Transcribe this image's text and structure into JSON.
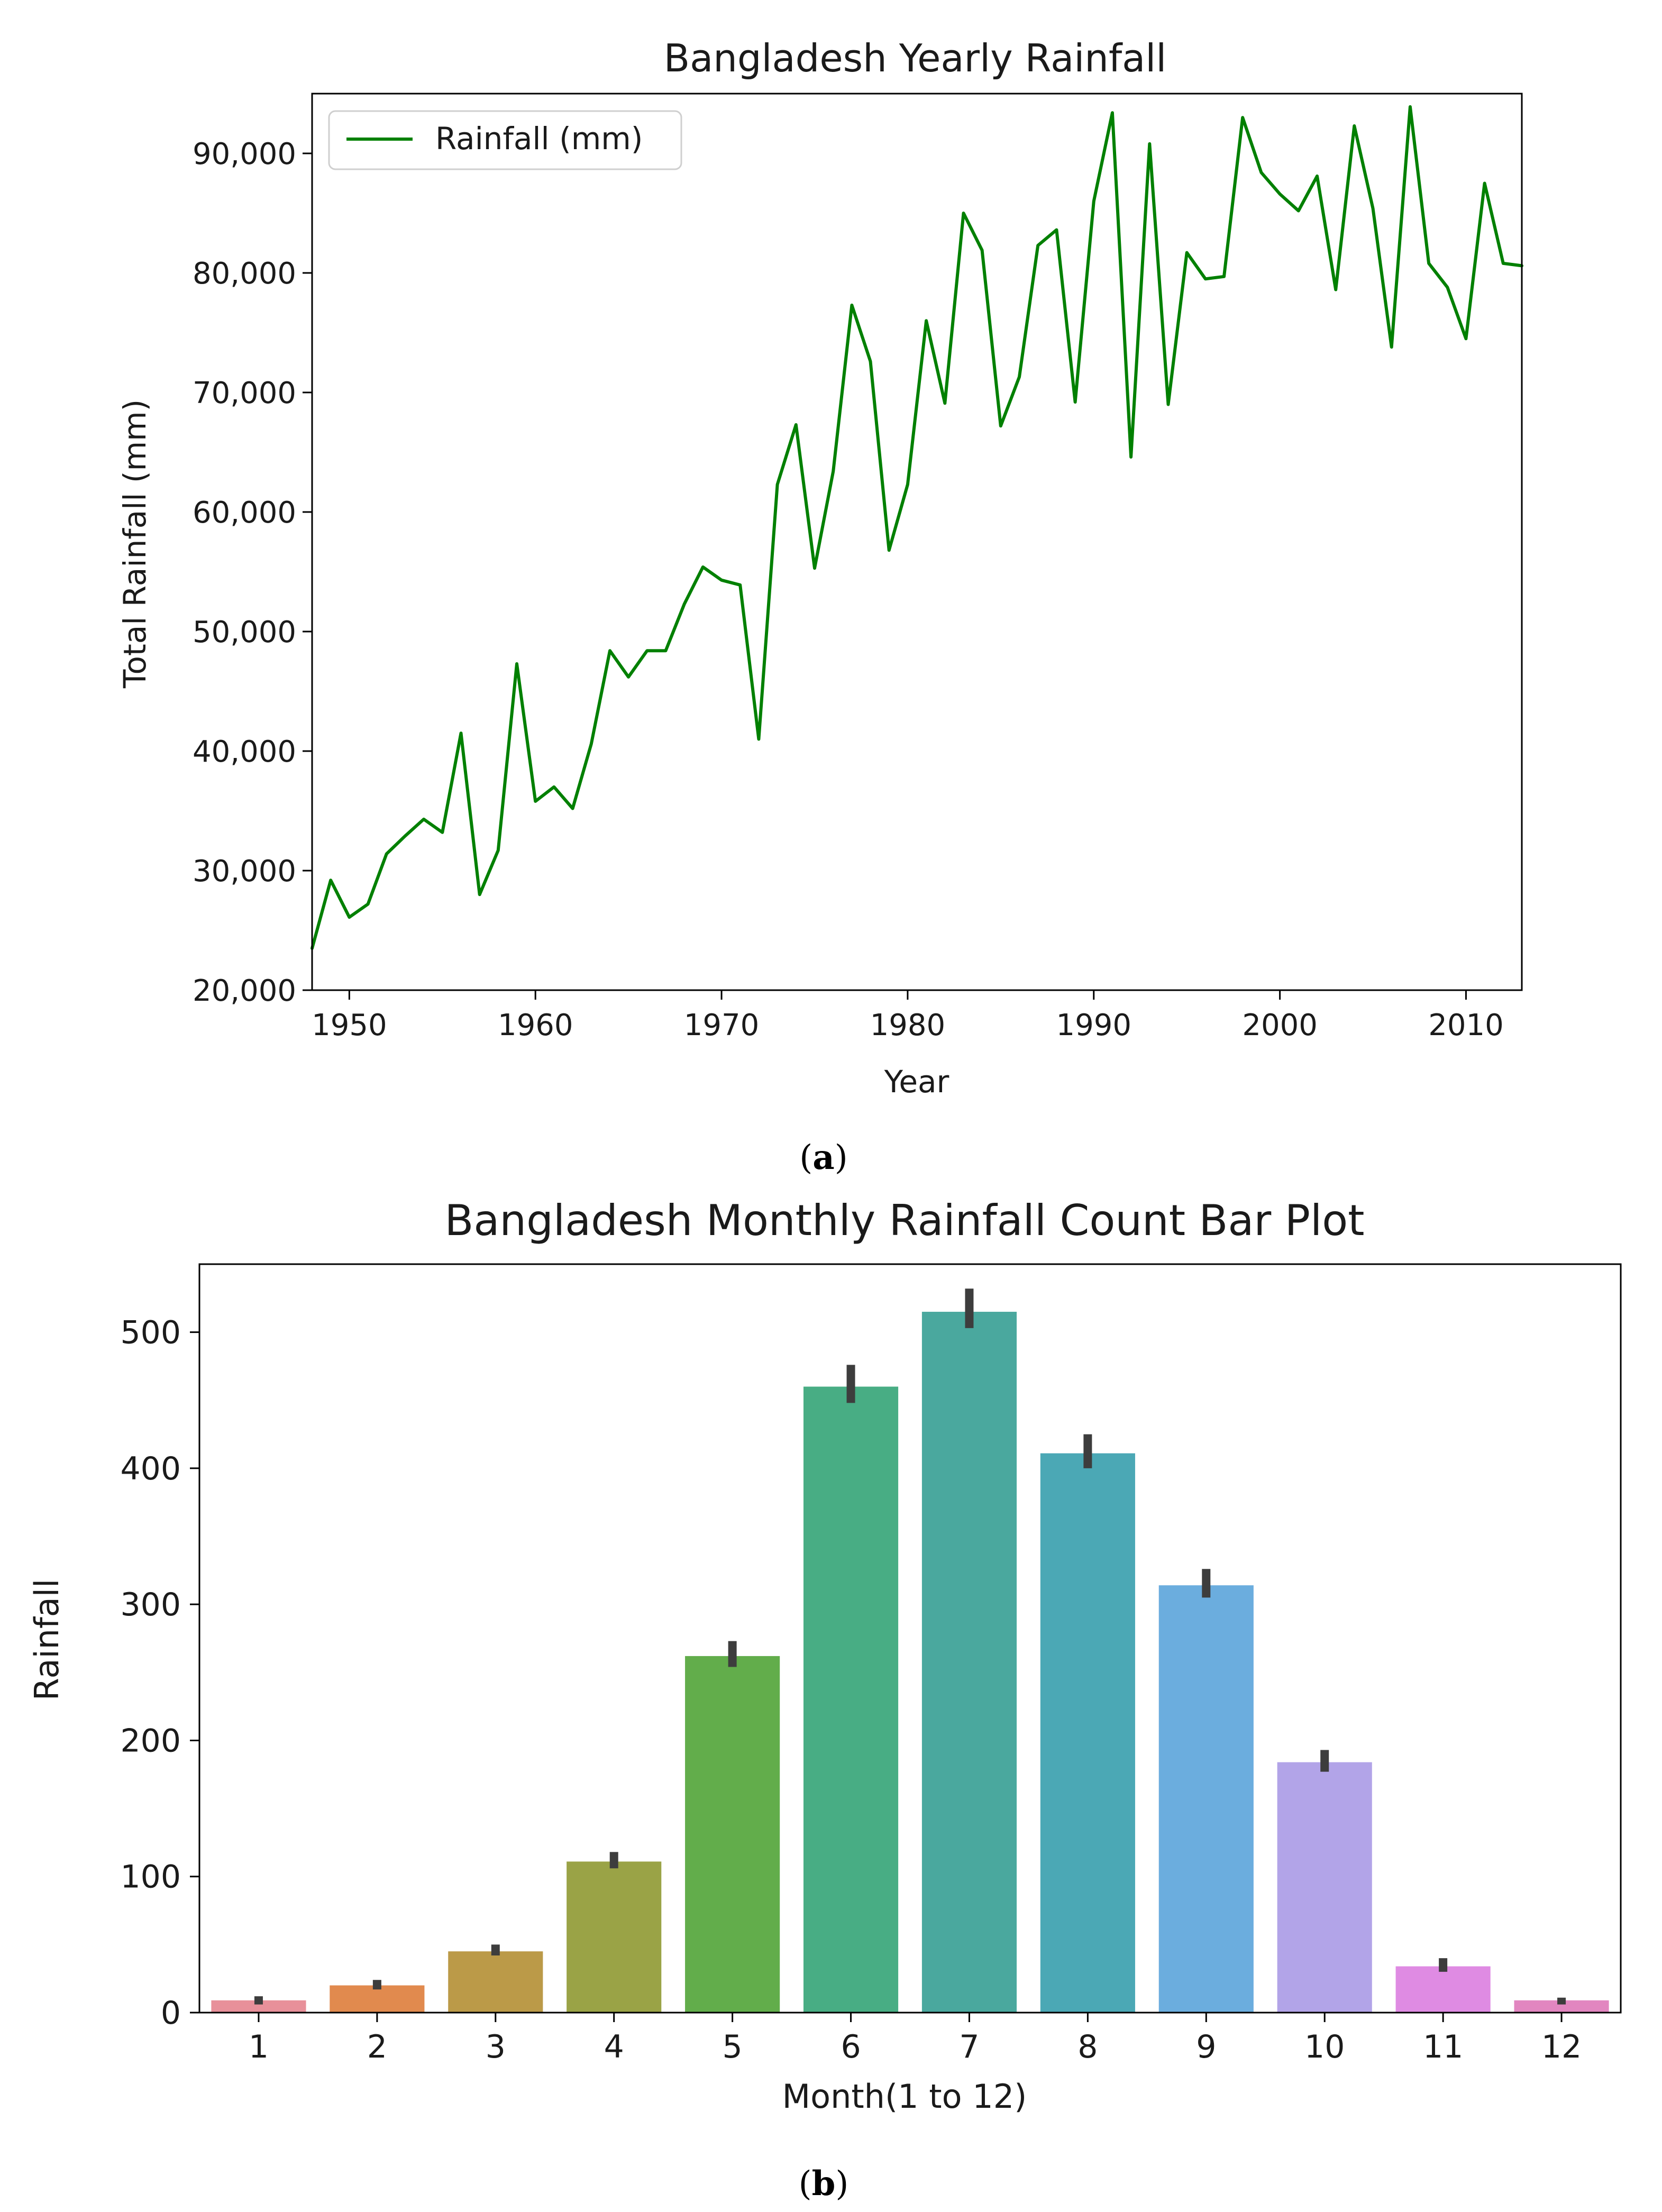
{
  "chart_data": [
    {
      "type": "line",
      "title": "Bangladesh Yearly Rainfall",
      "xlabel": "Year",
      "ylabel": "Total Rainfall (mm)",
      "xlim": [
        1948,
        2013
      ],
      "ylim": [
        20000,
        95000
      ],
      "x_ticks": [
        1950,
        1960,
        1970,
        1980,
        1990,
        2000,
        2010
      ],
      "x_tick_labels": [
        "1950",
        "1960",
        "1970",
        "1980",
        "1990",
        "2000",
        "2010"
      ],
      "y_ticks": [
        20000,
        30000,
        40000,
        50000,
        60000,
        70000,
        80000,
        90000
      ],
      "y_tick_labels": [
        "20,000",
        "30,000",
        "40,000",
        "50,000",
        "60,000",
        "70,000",
        "80,000",
        "90,000"
      ],
      "legend": {
        "label": "Rainfall (mm)",
        "position": "upper-left"
      },
      "series": [
        {
          "name": "Rainfall (mm)",
          "color": "#008000",
          "x": [
            1948,
            1949,
            1950,
            1951,
            1952,
            1953,
            1954,
            1955,
            1956,
            1957,
            1958,
            1959,
            1960,
            1961,
            1962,
            1963,
            1964,
            1965,
            1966,
            1967,
            1968,
            1969,
            1970,
            1971,
            1972,
            1973,
            1974,
            1975,
            1976,
            1977,
            1978,
            1979,
            1980,
            1981,
            1982,
            1983,
            1984,
            1985,
            1986,
            1987,
            1988,
            1989,
            1990,
            1991,
            1992,
            1993,
            1994,
            1995,
            1996,
            1997,
            1998,
            1999,
            2000,
            2001,
            2002,
            2003,
            2004,
            2005,
            2006,
            2007,
            2008,
            2009,
            2010,
            2011,
            2012,
            2013
          ],
          "values": [
            23500,
            29200,
            26100,
            27200,
            31400,
            32900,
            34300,
            33200,
            41500,
            28000,
            31700,
            47300,
            35800,
            37000,
            35200,
            40600,
            48400,
            46200,
            48400,
            48400,
            52300,
            55400,
            54300,
            53900,
            41000,
            62300,
            67300,
            55300,
            63400,
            77300,
            72600,
            56800,
            62300,
            76000,
            69100,
            85000,
            81900,
            67200,
            71300,
            82300,
            83600,
            69200,
            86000,
            93400,
            64600,
            90800,
            69000,
            81700,
            79500,
            79700,
            93000,
            88400,
            86600,
            85200,
            88100,
            78600,
            92300,
            85400,
            73800,
            93900,
            80800,
            78800,
            74500,
            87500,
            80800,
            80600
          ]
        }
      ]
    },
    {
      "type": "bar",
      "title": "Bangladesh Monthly Rainfall Count Bar Plot",
      "xlabel": "Month(1 to 12)",
      "ylabel": "Rainfall",
      "ylim": [
        0,
        550
      ],
      "y_ticks": [
        0,
        100,
        200,
        300,
        400,
        500
      ],
      "y_tick_labels": [
        "0",
        "100",
        "200",
        "300",
        "400",
        "500"
      ],
      "categories": [
        "1",
        "2",
        "3",
        "4",
        "5",
        "6",
        "7",
        "8",
        "9",
        "10",
        "11",
        "12"
      ],
      "values": [
        9,
        20,
        45,
        111,
        262,
        460,
        515,
        411,
        314,
        184,
        34,
        9
      ],
      "error_low": [
        6,
        17,
        42,
        106,
        254,
        448,
        503,
        400,
        305,
        177,
        30,
        6
      ],
      "error_high": [
        12,
        24,
        50,
        118,
        273,
        476,
        532,
        425,
        326,
        193,
        40,
        11
      ],
      "colors": [
        "#e8909a",
        "#e18a4e",
        "#bb9a48",
        "#9aa346",
        "#62ad4b",
        "#48ad84",
        "#4aa89e",
        "#4ba8b5",
        "#6badde",
        "#b2a4e8",
        "#df8be3",
        "#e286c0"
      ],
      "error_color": "#3d3d3d"
    }
  ],
  "captions": {
    "a": {
      "open": "(",
      "letter": "a",
      "close": ")"
    },
    "b": {
      "open": "(",
      "letter": "b",
      "close": ")"
    }
  }
}
